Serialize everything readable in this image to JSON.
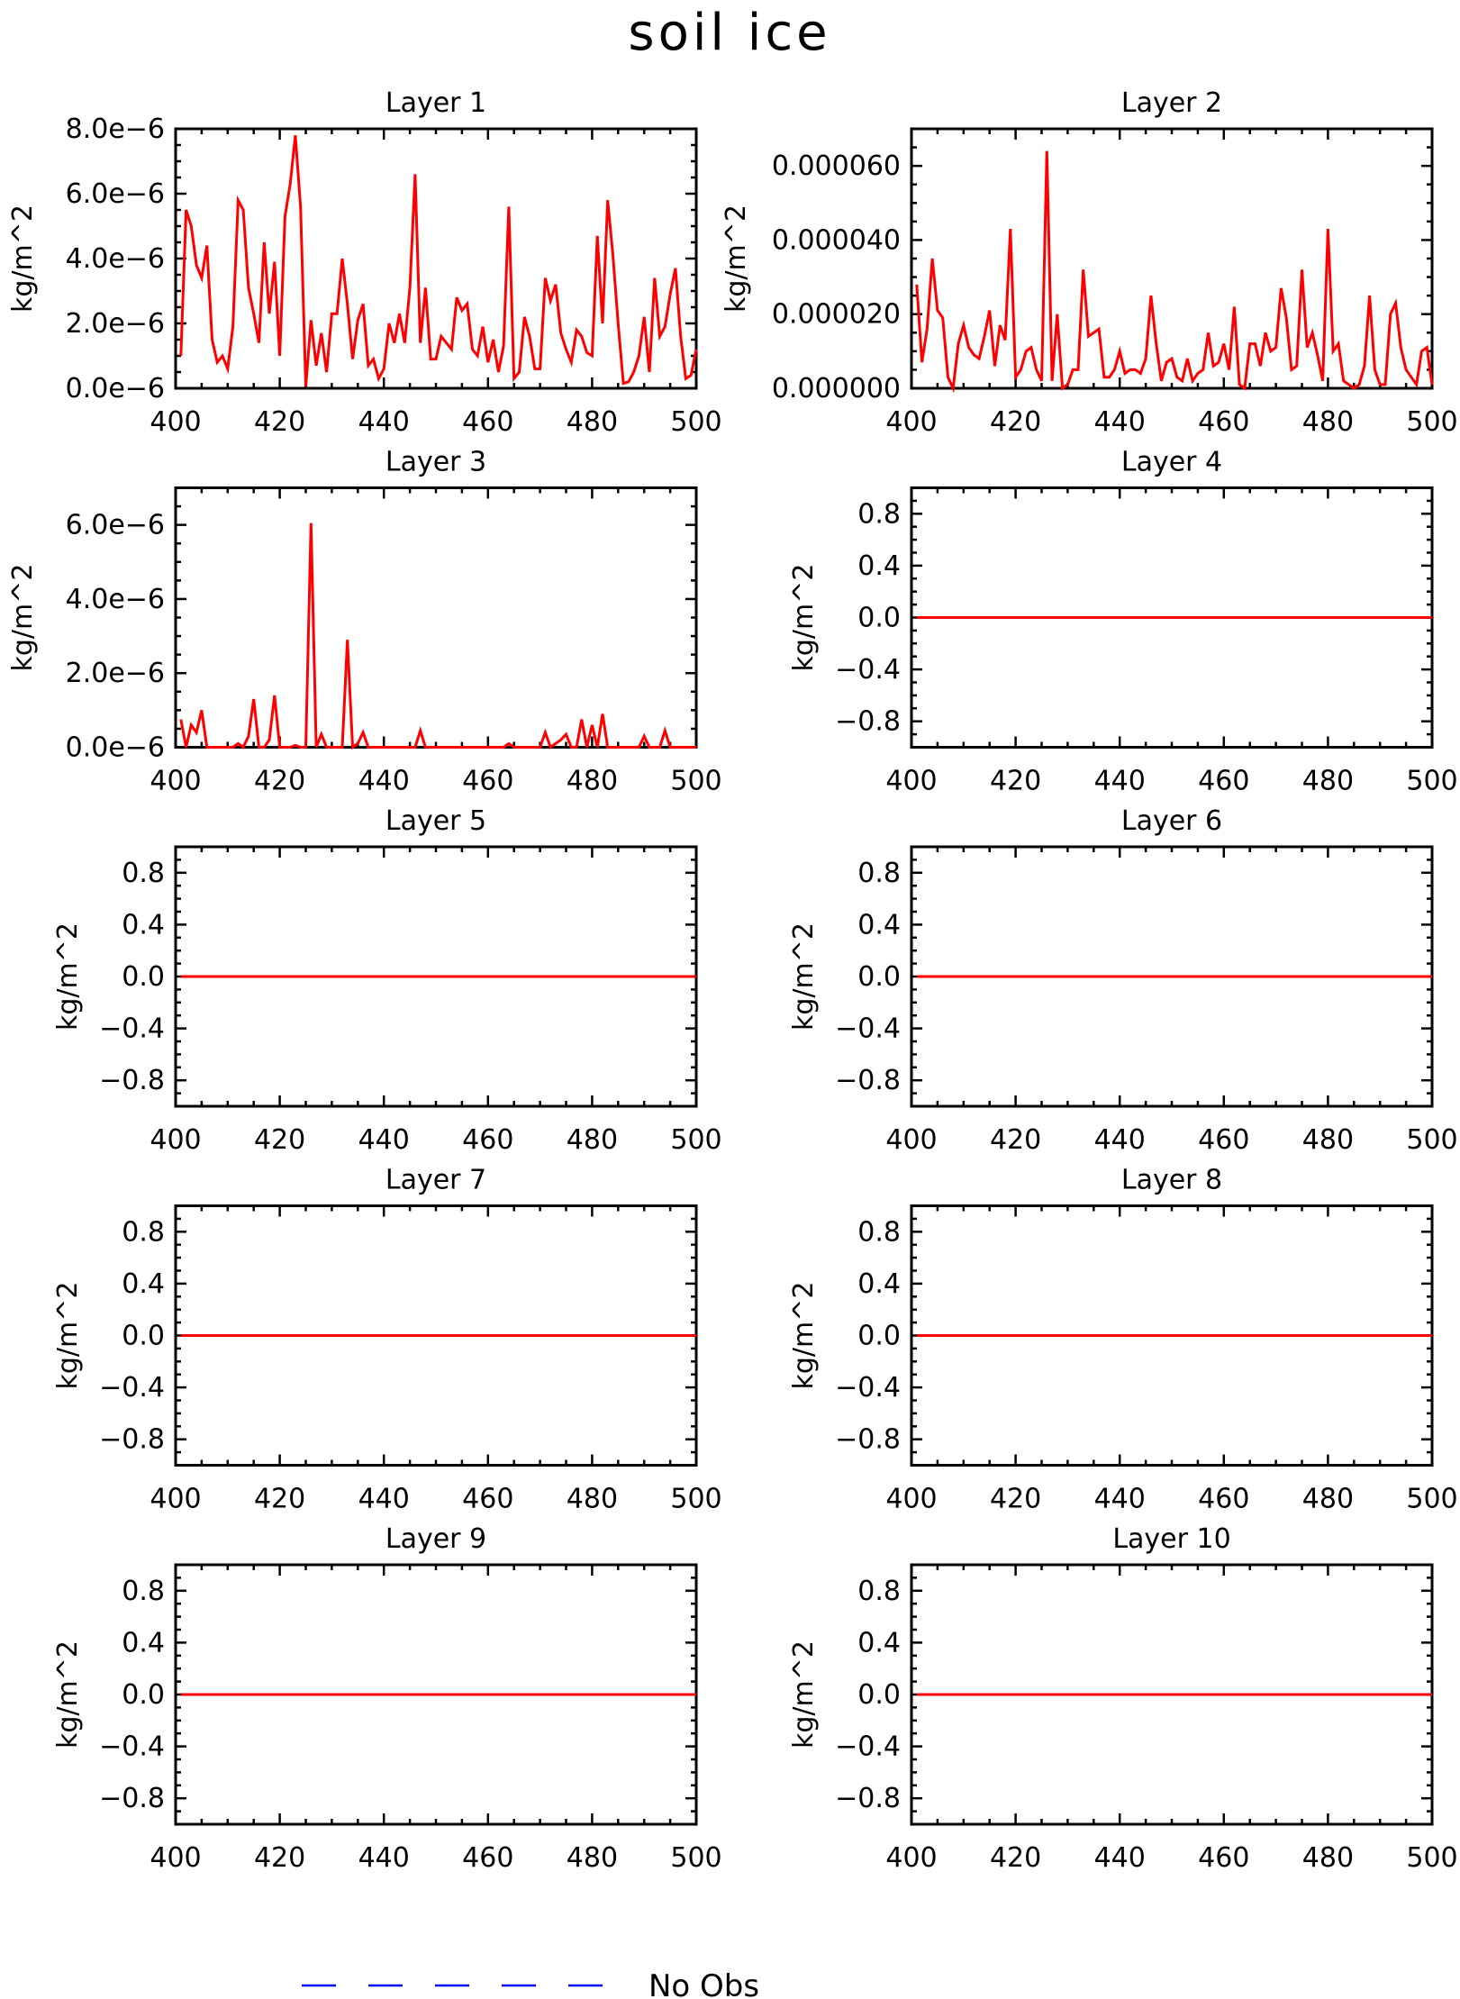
{
  "title": "soil ice",
  "legend": {
    "label": "No Obs",
    "color": "#0000ff",
    "style": "dashed"
  },
  "chart_data": [
    {
      "type": "line",
      "title": "Layer 1",
      "ylabel": "kg/m^2",
      "xlim": [
        400,
        500
      ],
      "ylim": [
        0,
        8e-06
      ],
      "xticks": [
        400,
        420,
        440,
        460,
        480,
        500
      ],
      "yticks": [
        0,
        2e-06,
        4e-06,
        6e-06,
        8e-06
      ],
      "ytick_labels": [
        "0.0e−6",
        "2.0e−6",
        "4.0e−6",
        "6.0e−6",
        "8.0e−6"
      ],
      "series": [
        {
          "color": "#ff0000",
          "x": [
            401,
            402,
            403,
            404,
            405,
            406,
            407,
            408,
            409,
            410,
            411,
            412,
            413,
            414,
            415,
            416,
            417,
            418,
            419,
            420,
            421,
            422,
            423,
            424,
            425,
            426,
            427,
            428,
            429,
            430,
            431,
            432,
            433,
            434,
            435,
            436,
            437,
            438,
            439,
            440,
            441,
            442,
            443,
            444,
            445,
            446,
            447,
            448,
            449,
            450,
            451,
            452,
            453,
            454,
            455,
            456,
            457,
            458,
            459,
            460,
            461,
            462,
            463,
            464,
            465,
            466,
            467,
            468,
            469,
            470,
            471,
            472,
            473,
            474,
            475,
            476,
            477,
            478,
            479,
            480,
            481,
            482,
            483,
            484,
            485,
            486,
            487,
            488,
            489,
            490,
            491,
            492,
            493,
            494,
            495,
            496,
            497,
            498,
            499,
            500
          ],
          "y": [
            1e-06,
            5.5e-06,
            5e-06,
            3.8e-06,
            3.4e-06,
            4.4e-06,
            1.5e-06,
            8e-07,
            1e-06,
            6e-07,
            1.9e-06,
            5.8e-06,
            5.5e-06,
            3.1e-06,
            2.3e-06,
            1.4e-06,
            4.5e-06,
            2.3e-06,
            3.9e-06,
            1e-06,
            5.3e-06,
            6.3e-06,
            7.8e-06,
            5.6e-06,
            5e-08,
            2.1e-06,
            7e-07,
            1.7e-06,
            5e-07,
            2.3e-06,
            2.3e-06,
            4e-06,
            2.6e-06,
            9e-07,
            2.1e-06,
            2.6e-06,
            7e-07,
            9e-07,
            3e-07,
            6e-07,
            2e-06,
            1.4e-06,
            2.3e-06,
            1.4e-06,
            3.1e-06,
            6.6e-06,
            1.4e-06,
            3.1e-06,
            9e-07,
            9e-07,
            1.6e-06,
            1.4e-06,
            1.2e-06,
            2.8e-06,
            2.4e-06,
            2.6e-06,
            1.2e-06,
            1e-06,
            1.9e-06,
            8e-07,
            1.5e-06,
            5e-07,
            1.3e-06,
            5.6e-06,
            3e-07,
            5e-07,
            2.2e-06,
            1.6e-06,
            6e-07,
            6e-07,
            3.4e-06,
            2.7e-06,
            3.2e-06,
            1.7e-06,
            1.2e-06,
            8e-07,
            1.8e-06,
            1.6e-06,
            1.1e-06,
            1e-06,
            4.7e-06,
            2e-06,
            5.8e-06,
            4.1e-06,
            2e-06,
            1.5e-07,
            2e-07,
            5e-07,
            1e-06,
            2.2e-06,
            5e-07,
            3.4e-06,
            1.6e-06,
            1.9e-06,
            2.9e-06,
            3.7e-06,
            1.6e-06,
            3e-07,
            4e-07,
            1.2e-06
          ]
        }
      ]
    },
    {
      "type": "line",
      "title": "Layer 2",
      "ylabel": "kg/m^2",
      "xlim": [
        400,
        500
      ],
      "ylim": [
        0,
        7e-05
      ],
      "xticks": [
        400,
        420,
        440,
        460,
        480,
        500
      ],
      "yticks": [
        0,
        2e-05,
        4e-05,
        6e-05
      ],
      "ytick_labels": [
        "0.000000",
        "0.000020",
        "0.000040",
        "0.000060"
      ],
      "series": [
        {
          "color": "#ff0000",
          "x": [
            401,
            402,
            403,
            404,
            405,
            406,
            407,
            408,
            409,
            410,
            411,
            412,
            413,
            414,
            415,
            416,
            417,
            418,
            419,
            420,
            421,
            422,
            423,
            424,
            425,
            426,
            427,
            428,
            429,
            430,
            431,
            432,
            433,
            434,
            435,
            436,
            437,
            438,
            439,
            440,
            441,
            442,
            443,
            444,
            445,
            446,
            447,
            448,
            449,
            450,
            451,
            452,
            453,
            454,
            455,
            456,
            457,
            458,
            459,
            460,
            461,
            462,
            463,
            464,
            465,
            466,
            467,
            468,
            469,
            470,
            471,
            472,
            473,
            474,
            475,
            476,
            477,
            478,
            479,
            480,
            481,
            482,
            483,
            484,
            485,
            486,
            487,
            488,
            489,
            490,
            491,
            492,
            493,
            494,
            495,
            496,
            497,
            498,
            499,
            500
          ],
          "y": [
            2.8e-05,
            7e-06,
            1.6e-05,
            3.5e-05,
            2.1e-05,
            1.9e-05,
            3e-06,
            0.0,
            1.2e-05,
            1.7e-05,
            1.1e-05,
            9e-06,
            8e-06,
            1.4e-05,
            2.1e-05,
            6e-06,
            1.7e-05,
            1.3e-05,
            4.3e-05,
            3e-06,
            5e-06,
            1e-05,
            1.1e-05,
            5e-06,
            2e-06,
            6.4e-05,
            2e-06,
            2e-05,
            0.0,
            1e-06,
            5e-06,
            5e-06,
            3.2e-05,
            1.4e-05,
            1.5e-05,
            1.6e-05,
            3e-06,
            3e-06,
            5e-06,
            1e-05,
            4e-06,
            5e-06,
            5e-06,
            4e-06,
            8e-06,
            2.5e-05,
            1.2e-05,
            2e-06,
            7e-06,
            8e-06,
            3e-06,
            2e-06,
            8e-06,
            2e-06,
            4e-06,
            5e-06,
            1.5e-05,
            6e-06,
            7e-06,
            1.2e-05,
            5e-06,
            2.2e-05,
            1e-06,
            0.0,
            1.2e-05,
            1.2e-05,
            6e-06,
            1.5e-05,
            1e-05,
            1.1e-05,
            2.7e-05,
            1.9e-05,
            5e-06,
            6e-06,
            3.2e-05,
            1.1e-05,
            1.5e-05,
            9e-06,
            2e-06,
            4.3e-05,
            1e-05,
            1.2e-05,
            2e-06,
            1e-06,
            0.0,
            1e-06,
            6e-06,
            2.5e-05,
            5e-06,
            1e-06,
            1e-06,
            2e-05,
            2.3e-05,
            1.1e-05,
            5e-06,
            3e-06,
            1e-06,
            1e-05,
            1.1e-05,
            1e-06
          ]
        }
      ]
    },
    {
      "type": "line",
      "title": "Layer 3",
      "ylabel": "kg/m^2",
      "xlim": [
        400,
        500
      ],
      "ylim": [
        0,
        7e-06
      ],
      "xticks": [
        400,
        420,
        440,
        460,
        480,
        500
      ],
      "yticks": [
        0,
        2e-06,
        4e-06,
        6e-06
      ],
      "ytick_labels": [
        "0.0e−6",
        "2.0e−6",
        "4.0e−6",
        "6.0e−6"
      ],
      "series": [
        {
          "color": "#ff0000",
          "x": [
            401,
            402,
            403,
            404,
            405,
            406,
            407,
            408,
            409,
            410,
            411,
            412,
            413,
            414,
            415,
            416,
            417,
            418,
            419,
            420,
            421,
            422,
            423,
            424,
            425,
            426,
            427,
            428,
            429,
            430,
            431,
            432,
            433,
            434,
            435,
            436,
            437,
            438,
            439,
            440,
            441,
            442,
            443,
            444,
            445,
            446,
            447,
            448,
            449,
            450,
            451,
            452,
            453,
            454,
            455,
            456,
            457,
            458,
            459,
            460,
            461,
            462,
            463,
            464,
            465,
            466,
            467,
            468,
            469,
            470,
            471,
            472,
            473,
            474,
            475,
            476,
            477,
            478,
            479,
            480,
            481,
            482,
            483,
            484,
            485,
            486,
            487,
            488,
            489,
            490,
            491,
            492,
            493,
            494,
            495,
            496,
            497,
            498,
            499,
            500
          ],
          "y": [
            7.5e-07,
            0,
            6e-07,
            4e-07,
            1e-06,
            0,
            0,
            0,
            0,
            0,
            0,
            1e-07,
            0,
            3e-07,
            1.3e-06,
            0,
            0,
            2e-07,
            1.4e-06,
            0,
            0,
            0,
            5e-08,
            0,
            0,
            6.05e-06,
            0,
            3.5e-07,
            0,
            0,
            0,
            0,
            2.9e-06,
            0,
            1e-07,
            4e-07,
            0,
            0,
            0,
            0,
            0,
            0,
            0,
            0,
            0,
            0,
            4.5e-07,
            0,
            0,
            0,
            0,
            0,
            0,
            0,
            0,
            0,
            0,
            0,
            0,
            0,
            0,
            0,
            0,
            1e-07,
            0,
            0,
            0,
            0,
            0,
            0,
            4e-07,
            0,
            1e-07,
            2e-07,
            3.5e-07,
            0,
            0,
            7.5e-07,
            0,
            6e-07,
            0,
            9e-07,
            0,
            0,
            0,
            0,
            0,
            0,
            0,
            3e-07,
            0,
            0,
            0,
            4.5e-07,
            0,
            0,
            0,
            0,
            0,
            0
          ]
        }
      ]
    },
    {
      "type": "line",
      "title": "Layer 4",
      "ylabel": "kg/m^2",
      "xlim": [
        400,
        500
      ],
      "ylim": [
        -1,
        1
      ],
      "xticks": [
        400,
        420,
        440,
        460,
        480,
        500
      ],
      "yticks": [
        -0.8,
        -0.4,
        0,
        0.4,
        0.8
      ],
      "ytick_labels": [
        "−0.8",
        "−0.4",
        "0.0",
        "0.4",
        "0.8"
      ],
      "series": [
        {
          "color": "#ff0000",
          "x": [
            401,
            500
          ],
          "y": [
            0,
            0
          ]
        }
      ]
    },
    {
      "type": "line",
      "title": "Layer 5",
      "ylabel": "kg/m^2",
      "xlim": [
        400,
        500
      ],
      "ylim": [
        -1,
        1
      ],
      "xticks": [
        400,
        420,
        440,
        460,
        480,
        500
      ],
      "yticks": [
        -0.8,
        -0.4,
        0,
        0.4,
        0.8
      ],
      "ytick_labels": [
        "−0.8",
        "−0.4",
        "0.0",
        "0.4",
        "0.8"
      ],
      "series": [
        {
          "color": "#ff0000",
          "x": [
            401,
            500
          ],
          "y": [
            0,
            0
          ]
        }
      ]
    },
    {
      "type": "line",
      "title": "Layer 6",
      "ylabel": "kg/m^2",
      "xlim": [
        400,
        500
      ],
      "ylim": [
        -1,
        1
      ],
      "xticks": [
        400,
        420,
        440,
        460,
        480,
        500
      ],
      "yticks": [
        -0.8,
        -0.4,
        0,
        0.4,
        0.8
      ],
      "ytick_labels": [
        "−0.8",
        "−0.4",
        "0.0",
        "0.4",
        "0.8"
      ],
      "series": [
        {
          "color": "#ff0000",
          "x": [
            401,
            500
          ],
          "y": [
            0,
            0
          ]
        }
      ]
    },
    {
      "type": "line",
      "title": "Layer 7",
      "ylabel": "kg/m^2",
      "xlim": [
        400,
        500
      ],
      "ylim": [
        -1,
        1
      ],
      "xticks": [
        400,
        420,
        440,
        460,
        480,
        500
      ],
      "yticks": [
        -0.8,
        -0.4,
        0,
        0.4,
        0.8
      ],
      "ytick_labels": [
        "−0.8",
        "−0.4",
        "0.0",
        "0.4",
        "0.8"
      ],
      "series": [
        {
          "color": "#ff0000",
          "x": [
            401,
            500
          ],
          "y": [
            0,
            0
          ]
        }
      ]
    },
    {
      "type": "line",
      "title": "Layer 8",
      "ylabel": "kg/m^2",
      "xlim": [
        400,
        500
      ],
      "ylim": [
        -1,
        1
      ],
      "xticks": [
        400,
        420,
        440,
        460,
        480,
        500
      ],
      "yticks": [
        -0.8,
        -0.4,
        0,
        0.4,
        0.8
      ],
      "ytick_labels": [
        "−0.8",
        "−0.4",
        "0.0",
        "0.4",
        "0.8"
      ],
      "series": [
        {
          "color": "#ff0000",
          "x": [
            401,
            500
          ],
          "y": [
            0,
            0
          ]
        }
      ]
    },
    {
      "type": "line",
      "title": "Layer 9",
      "ylabel": "kg/m^2",
      "xlim": [
        400,
        500
      ],
      "ylim": [
        -1,
        1
      ],
      "xticks": [
        400,
        420,
        440,
        460,
        480,
        500
      ],
      "yticks": [
        -0.8,
        -0.4,
        0,
        0.4,
        0.8
      ],
      "ytick_labels": [
        "−0.8",
        "−0.4",
        "0.0",
        "0.4",
        "0.8"
      ],
      "series": [
        {
          "color": "#ff0000",
          "x": [
            401,
            500
          ],
          "y": [
            0,
            0
          ]
        }
      ]
    },
    {
      "type": "line",
      "title": "Layer 10",
      "ylabel": "kg/m^2",
      "xlim": [
        400,
        500
      ],
      "ylim": [
        -1,
        1
      ],
      "xticks": [
        400,
        420,
        440,
        460,
        480,
        500
      ],
      "yticks": [
        -0.8,
        -0.4,
        0,
        0.4,
        0.8
      ],
      "ytick_labels": [
        "−0.8",
        "−0.4",
        "0.0",
        "0.4",
        "0.8"
      ],
      "series": [
        {
          "color": "#ff0000",
          "x": [
            401,
            500
          ],
          "y": [
            0,
            0
          ]
        }
      ]
    }
  ]
}
